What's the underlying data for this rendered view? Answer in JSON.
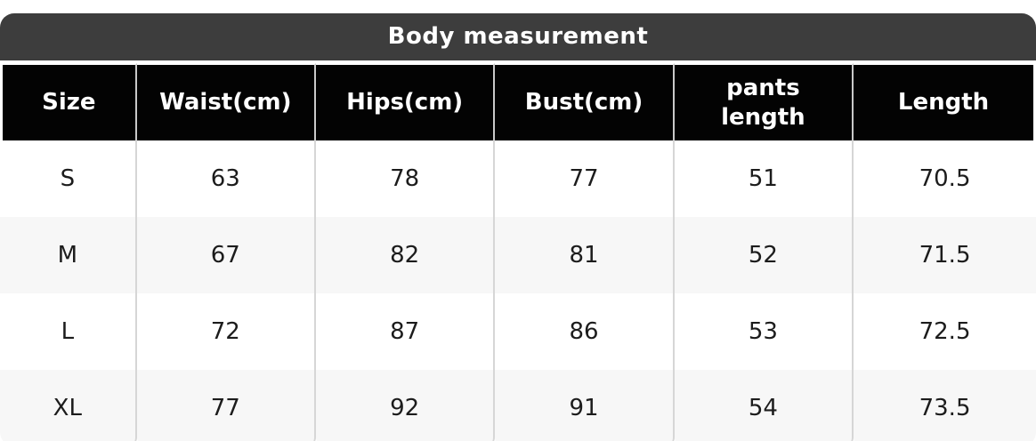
{
  "colors": {
    "page_bg": "#ffffff",
    "titlebar_bg": "#3d3d3d",
    "header_bg": "#030303",
    "header_text": "#ffffff",
    "row_bg": "#ffffff",
    "row_alt_bg": "#f7f7f7",
    "body_text": "#1c1c1c",
    "divider": "#d6d6d6",
    "next_bar_bg": "#3f3f3f"
  },
  "title_bar": {
    "label": "Body measurement"
  },
  "size_table": {
    "columns": [
      "Size",
      "Waist(cm)",
      "Hips(cm)",
      "Bust(cm)",
      "pants length",
      "Length"
    ],
    "rows": [
      {
        "size": "S",
        "waist": "63",
        "hips": "78",
        "bust": "77",
        "pants_length": "51",
        "length": "70.5"
      },
      {
        "size": "M",
        "waist": "67",
        "hips": "82",
        "bust": "81",
        "pants_length": "52",
        "length": "71.5"
      },
      {
        "size": "L",
        "waist": "72",
        "hips": "87",
        "bust": "86",
        "pants_length": "53",
        "length": "72.5"
      },
      {
        "size": "XL",
        "waist": "77",
        "hips": "92",
        "bust": "91",
        "pants_length": "54",
        "length": "73.5"
      }
    ]
  },
  "chart_data": {
    "type": "table",
    "title": "Body measurement",
    "columns": [
      "Size",
      "Waist(cm)",
      "Hips(cm)",
      "Bust(cm)",
      "pants length",
      "Length"
    ],
    "rows": [
      [
        "S",
        63,
        78,
        77,
        51,
        70.5
      ],
      [
        "M",
        67,
        82,
        81,
        52,
        71.5
      ],
      [
        "L",
        72,
        87,
        86,
        53,
        72.5
      ],
      [
        "XL",
        77,
        92,
        91,
        54,
        73.5
      ]
    ]
  }
}
